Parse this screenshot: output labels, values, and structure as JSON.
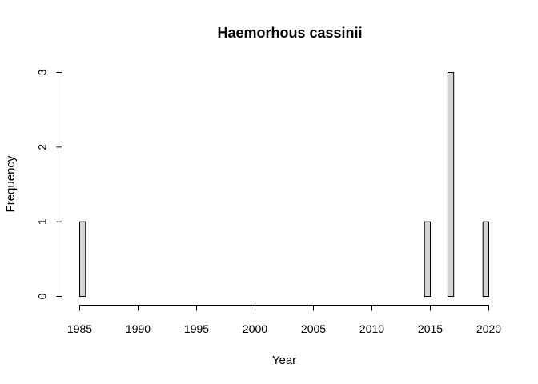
{
  "chart_data": {
    "type": "bar",
    "title": "Haemorhous cassinii",
    "xlabel": "Year",
    "ylabel": "Frequency",
    "xlim": [
      1985,
      2020
    ],
    "ylim": [
      0,
      3
    ],
    "bin_width": 0.5,
    "x_ticks": [
      1985,
      1990,
      1995,
      2000,
      2005,
      2010,
      2015,
      2020
    ],
    "y_ticks": [
      0,
      1,
      2,
      3
    ],
    "bars": [
      {
        "start": 1985.0,
        "end": 1985.5,
        "count": 1
      },
      {
        "start": 2014.5,
        "end": 2015.0,
        "count": 1
      },
      {
        "start": 2016.5,
        "end": 2017.0,
        "count": 3
      },
      {
        "start": 2019.5,
        "end": 2020.0,
        "count": 1
      }
    ],
    "colors": {
      "bar_fill": "#d3d3d3",
      "bar_stroke": "#000000"
    }
  }
}
